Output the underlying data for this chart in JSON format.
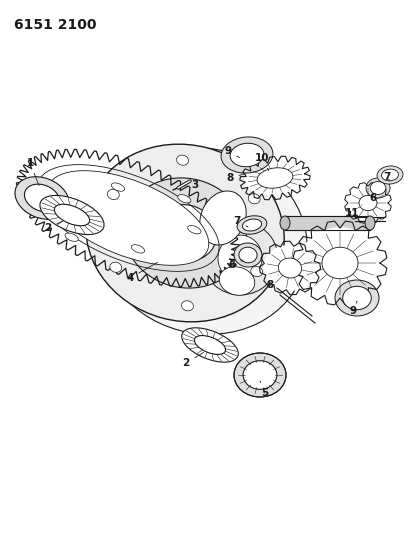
{
  "title": "6151 2100",
  "bg_color": "#ffffff",
  "line_color": "#1a1a1a",
  "title_fontsize": 10,
  "fig_width": 4.08,
  "fig_height": 5.33,
  "dpi": 100
}
